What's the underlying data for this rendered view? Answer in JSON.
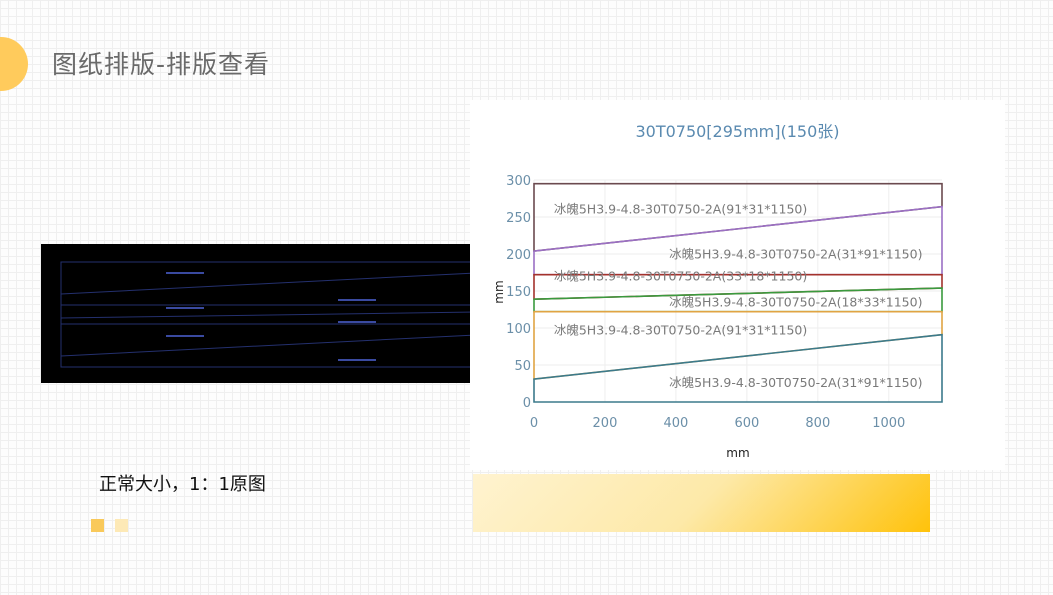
{
  "header": {
    "title": "图纸排版-排版查看"
  },
  "preview": {
    "caption": "正常大小，1：1原图"
  },
  "chart_data": {
    "type": "area",
    "title": "30T0750[295mm](150张)",
    "xlabel": "mm",
    "ylabel": "mm",
    "xlim": [
      0,
      1150
    ],
    "ylim": [
      0,
      300
    ],
    "xticks": [
      "0",
      "200",
      "400",
      "600",
      "800",
      "1000"
    ],
    "yticks": [
      "0",
      "50",
      "100",
      "150",
      "200",
      "250",
      "300"
    ],
    "grid": true,
    "series": [
      {
        "name": "冰魄5H3.9-4.8-30T0750-2A(91*31*1150)",
        "color": "#6b4a4f",
        "polygon": [
          [
            0,
            204
          ],
          [
            1150,
            264
          ],
          [
            1150,
            295
          ],
          [
            0,
            295
          ]
        ]
      },
      {
        "name": "冰魄5H3.9-4.8-30T0750-2A(31*91*1150)",
        "color": "#9b70c4",
        "polygon": [
          [
            0,
            172
          ],
          [
            1150,
            172
          ],
          [
            1150,
            264
          ],
          [
            0,
            204
          ]
        ]
      },
      {
        "name": "冰魄5H3.9-4.8-30T0750-2A(33*18*1150)",
        "color": "#a3322c",
        "polygon": [
          [
            0,
            139
          ],
          [
            1150,
            154
          ],
          [
            1150,
            172
          ],
          [
            0,
            172
          ]
        ]
      },
      {
        "name": "冰魄5H3.9-4.8-30T0750-2A(18*33*1150)",
        "color": "#3a9a3e",
        "polygon": [
          [
            0,
            122
          ],
          [
            1150,
            122
          ],
          [
            1150,
            154
          ],
          [
            0,
            139
          ]
        ]
      },
      {
        "name": "冰魄5H3.9-4.8-30T0750-2A(91*31*1150)",
        "color": "#e0a443",
        "polygon": [
          [
            0,
            31
          ],
          [
            1150,
            91
          ],
          [
            1150,
            122
          ],
          [
            0,
            122
          ]
        ]
      },
      {
        "name": "冰魄5H3.9-4.8-30T0750-2A(31*91*1150)",
        "color": "#3b7a8c",
        "polygon": [
          [
            0,
            0
          ],
          [
            1150,
            0
          ],
          [
            1150,
            91
          ],
          [
            0,
            31
          ]
        ]
      }
    ]
  }
}
